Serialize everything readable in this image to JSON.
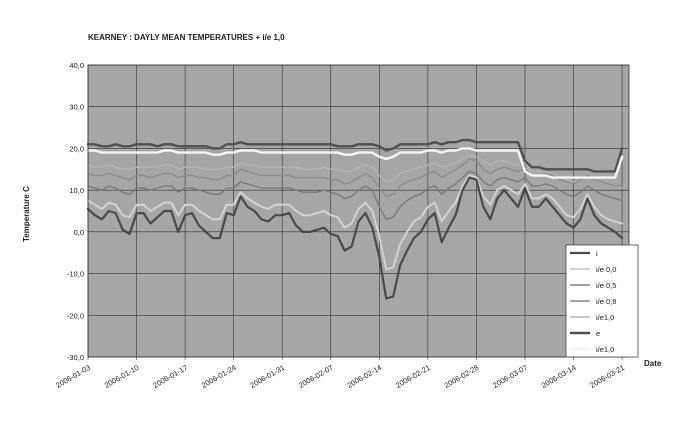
{
  "chart_data": {
    "type": "line",
    "title": "KEARNEY : DAYLY MEAN TEMPERATURES + i/e 1,0",
    "xlabel": "Date",
    "ylabel": "Temperature C",
    "ylim": [
      -30,
      40
    ],
    "yticks": [
      "40,0",
      "30,0",
      "20,0",
      "10,0",
      "0,0",
      "-10,0",
      "-20,0",
      "-30,0"
    ],
    "ytick_values": [
      40,
      30,
      20,
      10,
      0,
      -10,
      -20,
      -30
    ],
    "x_tick_labels": [
      "2006-01-03",
      "2006-01-10",
      "2006-01-17",
      "2006-01-24",
      "2006-01-31",
      "2006-02-07",
      "2006-02-14",
      "2006-02-21",
      "2006-02-28",
      "2006-03-07",
      "2006-03-14",
      "2006-03-21"
    ],
    "x_start": "2006-01-03",
    "days": 78,
    "grid": true,
    "legend_position": "right",
    "plot_bg": "#a6a6a6",
    "series": [
      {
        "name": "i",
        "color": "#4a4a4a",
        "width": 2.2,
        "values": [
          5.5,
          4,
          3,
          5,
          4.5,
          0.5,
          -0.5,
          4.5,
          4.5,
          2,
          3.5,
          5,
          5,
          0,
          4,
          4.5,
          1.5,
          0,
          -1.5,
          -1.5,
          4.5,
          4,
          8.5,
          6,
          5,
          3,
          2.5,
          4,
          4,
          4.5,
          1.5,
          0,
          0,
          0.5,
          1,
          -0.5,
          -1,
          -4.5,
          -3.5,
          2.5,
          4.5,
          1,
          -6,
          -16,
          -15.5,
          -8,
          -4.5,
          -1.5,
          0,
          3,
          4.5,
          -2.5,
          1,
          4,
          10,
          13,
          12.5,
          6,
          3,
          8,
          10,
          8,
          6,
          10.5,
          6,
          6,
          8,
          6,
          4,
          2,
          1,
          3,
          8,
          4,
          2,
          1,
          0,
          -1.5
        ]
      },
      {
        "name": "i/e 0,0",
        "color": "#d2d2d2",
        "width": 2,
        "values": [
          7.5,
          6.5,
          5.5,
          7,
          6.5,
          4,
          3.5,
          6.5,
          6.5,
          5,
          6,
          7,
          7,
          4,
          6.5,
          6.5,
          5,
          4,
          3,
          3,
          6.5,
          6.5,
          9.5,
          8,
          7,
          6,
          5.5,
          6.5,
          6.5,
          6.5,
          5,
          4,
          4,
          4.5,
          5,
          4,
          3.5,
          1,
          2,
          5.5,
          7,
          5,
          -1,
          -9,
          -8.5,
          -3,
          0,
          2.5,
          3.5,
          6,
          7,
          2.5,
          5,
          7,
          11,
          13.5,
          13,
          8.5,
          6.5,
          10,
          11,
          10,
          9,
          11.5,
          8,
          8,
          9,
          8,
          6,
          4,
          3.5,
          5.5,
          9,
          6,
          4,
          3,
          2.5,
          2
        ]
      },
      {
        "name": "i/e 0,5",
        "color": "#7a7a7a",
        "width": 1.4,
        "values": [
          11,
          10.5,
          10,
          11,
          10.5,
          9.5,
          9,
          10.5,
          10.5,
          10,
          10.5,
          11,
          11,
          9.5,
          10.5,
          10.5,
          10,
          9.5,
          9,
          9,
          10.5,
          10.5,
          12,
          11.5,
          11,
          10.5,
          10.5,
          10.5,
          10.5,
          10.5,
          10,
          9.5,
          9.5,
          9.5,
          10,
          9.5,
          9,
          8,
          8.5,
          10,
          11,
          10,
          6,
          3,
          3.5,
          6,
          7.5,
          8.5,
          9,
          10.5,
          11,
          9,
          10.5,
          11.5,
          13,
          14.5,
          14,
          12,
          11,
          12.5,
          13,
          12.5,
          12,
          13,
          11,
          11,
          11.5,
          11,
          10,
          9,
          8.5,
          9.5,
          11,
          10,
          9,
          8.5,
          8,
          7.5
        ]
      },
      {
        "name": "i/e 0,8",
        "color": "#8c8c8c",
        "width": 1.4,
        "values": [
          14,
          13.5,
          13.5,
          14,
          13.5,
          13,
          12.5,
          13.5,
          13.5,
          13,
          13.5,
          14,
          14,
          13,
          13.5,
          13.5,
          13,
          13,
          12.5,
          12.5,
          13.5,
          13.5,
          15,
          14.5,
          14,
          13.5,
          13.5,
          13.5,
          13.5,
          13.5,
          13,
          13,
          13,
          13,
          13,
          12.5,
          12.5,
          11.5,
          12,
          13,
          14,
          13,
          10.5,
          8.5,
          9,
          11,
          12,
          12.5,
          13,
          14,
          14.5,
          13,
          14,
          15,
          16,
          17.5,
          17,
          15,
          14,
          15,
          15.5,
          15,
          14.5,
          15,
          13.5,
          13.5,
          14,
          13.5,
          12.5,
          12,
          11.5,
          12.5,
          13.5,
          12.5,
          12,
          11.5,
          11,
          11
        ]
      },
      {
        "name": "i/e1,0",
        "color": "#b4b4b4",
        "width": 1.4,
        "values": [
          16,
          15.5,
          15.5,
          16,
          15.5,
          15,
          15,
          15.5,
          15.5,
          15.5,
          15.5,
          16,
          16,
          15,
          15.5,
          15.5,
          15.5,
          15,
          15,
          15,
          15.5,
          15.5,
          16.5,
          16,
          16,
          15.5,
          15.5,
          15.5,
          15.5,
          15.5,
          15.5,
          15,
          15,
          15,
          15.5,
          15,
          15,
          14.5,
          14.5,
          15.5,
          16,
          15.5,
          13.5,
          12,
          12.5,
          14,
          14.5,
          15,
          15.5,
          16,
          16.5,
          15.5,
          16,
          16.5,
          17.5,
          18.5,
          18,
          17,
          16,
          17,
          17,
          16.5,
          16,
          16.5,
          14.5,
          14.5,
          14.5,
          14,
          13,
          12.5,
          12,
          12.5,
          13.5,
          12.5,
          12,
          11.5,
          11,
          10.5
        ]
      },
      {
        "name": "e",
        "color": "#505050",
        "width": 2.4,
        "values": [
          21,
          21,
          20.5,
          20.5,
          21,
          20.5,
          20.5,
          21,
          21,
          21,
          20.5,
          21,
          21,
          20.5,
          20.5,
          20.5,
          20.5,
          20.5,
          20,
          20,
          21,
          21,
          21.5,
          21,
          21,
          21,
          21,
          21,
          21,
          21,
          21,
          21,
          21,
          21,
          21,
          21,
          20.5,
          20.5,
          20.5,
          21,
          21,
          21,
          20.5,
          19.5,
          20,
          21,
          21,
          21,
          21,
          21,
          21.5,
          21,
          21.5,
          21.5,
          22,
          22,
          21.5,
          21.5,
          21.5,
          21.5,
          21.5,
          21.5,
          21.5,
          17,
          15.5,
          15.5,
          15,
          15,
          15,
          15,
          15,
          15,
          15,
          14.5,
          14.5,
          14.5,
          14.5,
          20
        ]
      },
      {
        "name": "i/e1,0",
        "color": "#f5f5f5",
        "width": 2.4,
        "values": [
          19.5,
          19.5,
          19,
          19,
          19,
          19,
          19,
          19,
          19,
          19,
          19,
          19.5,
          19.5,
          19,
          19,
          19,
          19,
          19,
          18.5,
          18.5,
          19,
          19,
          19.5,
          19.5,
          19.5,
          19,
          19,
          19,
          19,
          19,
          19,
          19,
          19,
          19,
          19,
          19,
          19,
          18.5,
          18.5,
          19,
          19,
          19,
          18,
          17.5,
          18,
          19,
          19,
          19,
          19,
          19.5,
          19.5,
          19,
          19.5,
          19.5,
          20,
          20,
          19.5,
          19.5,
          19.5,
          19.5,
          19.5,
          19.5,
          19.5,
          14.5,
          13.5,
          13.5,
          13.5,
          13,
          13,
          13,
          13,
          13,
          13,
          13,
          13,
          13,
          13,
          18
        ]
      }
    ]
  }
}
